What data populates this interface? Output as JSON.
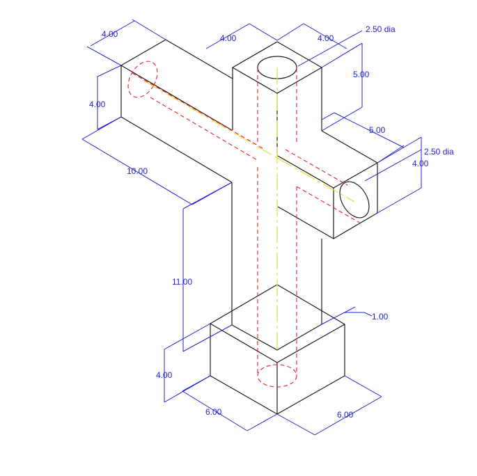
{
  "colors": {
    "object_lines": "#1a1a1a",
    "hidden_lines": "#e8202a",
    "center_lines": "#e2e24a",
    "dimensions": "#1f1fd6",
    "background": "#ffffff"
  },
  "dimensions": {
    "left_arm_width": "4.00",
    "left_arm_height": "4.00",
    "left_arm_length": "10.00",
    "top_width_left": "4.00",
    "top_width_right": "4.00",
    "top_hole": "2.50 dia",
    "top_height": "5.00",
    "right_arm_length": "5.00",
    "right_hole": "2.50 dia",
    "right_arm_height": "4.00",
    "stem_height": "11.00",
    "base_height": "4.00",
    "base_offset": "1.00",
    "base_width_left": "6.00",
    "base_width_right": "6.00"
  }
}
